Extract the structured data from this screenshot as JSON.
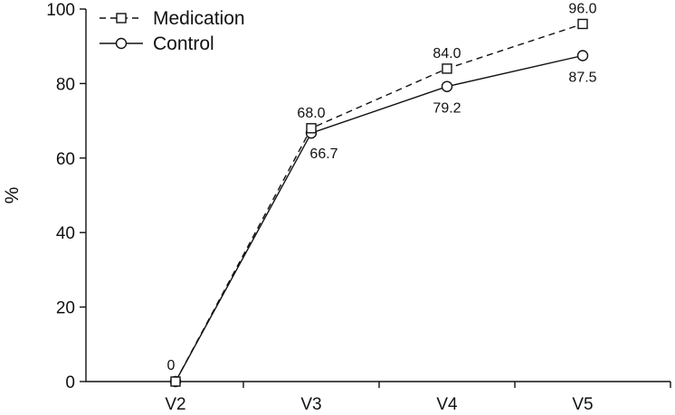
{
  "chart_data": {
    "type": "line",
    "title": "",
    "xlabel": "",
    "ylabel": "%",
    "ylim": [
      0,
      100
    ],
    "yticks": [
      0,
      20,
      40,
      60,
      80,
      100
    ],
    "categories": [
      "V2",
      "V3",
      "V4",
      "V5"
    ],
    "grid": false,
    "legend_position": "top-left",
    "series": [
      {
        "name": "Medication",
        "values": [
          0,
          68.0,
          84.0,
          96.0
        ],
        "labels": [
          "",
          "68.0",
          "84.0",
          "96.0"
        ],
        "marker": "square",
        "line_style": "dashed",
        "label_position": "above"
      },
      {
        "name": "Control",
        "values": [
          0,
          66.7,
          79.2,
          87.5
        ],
        "labels": [
          "0",
          "66.7",
          "79.2",
          "87.5"
        ],
        "marker": "circle",
        "line_style": "solid",
        "label_position": "below"
      }
    ]
  }
}
